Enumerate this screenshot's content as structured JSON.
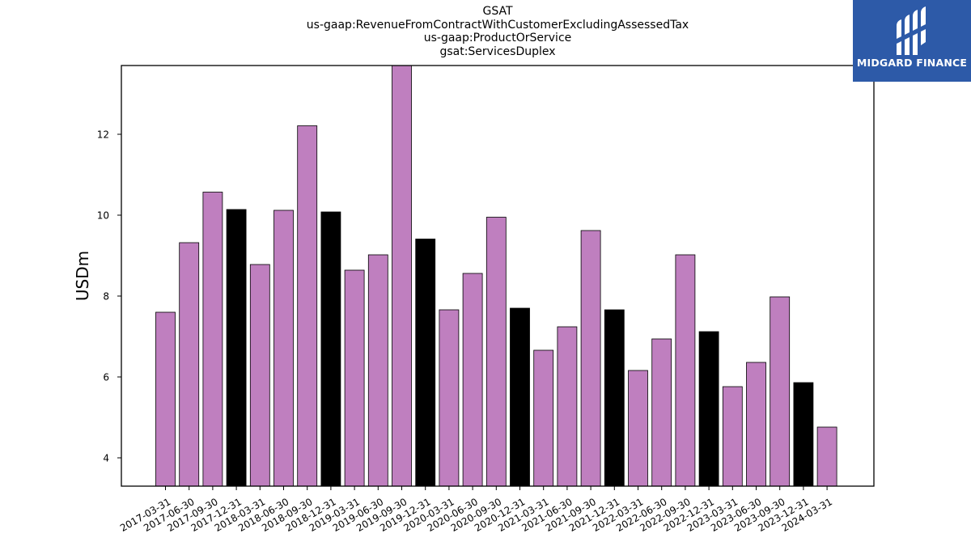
{
  "title_lines": [
    "GSAT",
    "us-gaap:RevenueFromContractWithCustomerExcludingAssessedTax",
    "us-gaap:ProductOrService",
    "gsat:ServicesDuplex"
  ],
  "logo": {
    "text": "MIDGARD FINANCE",
    "bg_color": "#2d5aa8"
  },
  "colors": {
    "quarter": "#bf7fbf",
    "year_end": "#000000"
  },
  "chart_data": {
    "type": "bar",
    "title": "GSAT\nus-gaap:RevenueFromContractWithCustomerExcludingAssessedTax\nus-gaap:ProductOrService\ngsat:ServicesDuplex",
    "xlabel": "",
    "ylabel": "USDm",
    "ylim": [
      3.3,
      13.7
    ],
    "yticks": [
      4,
      6,
      8,
      10,
      12
    ],
    "grid": false,
    "categories": [
      "2017-03-31",
      "2017-06-30",
      "2017-09-30",
      "2017-12-31",
      "2018-03-31",
      "2018-06-30",
      "2018-09-30",
      "2018-12-31",
      "2019-03-31",
      "2019-06-30",
      "2019-09-30",
      "2019-12-31",
      "2020-03-31",
      "2020-06-30",
      "2020-09-30",
      "2020-12-31",
      "2021-03-31",
      "2021-06-30",
      "2021-09-30",
      "2021-12-31",
      "2022-03-31",
      "2022-06-30",
      "2022-09-30",
      "2022-12-31",
      "2023-03-31",
      "2023-06-30",
      "2023-09-30",
      "2023-12-31",
      "2024-03-31"
    ],
    "values": [
      7.6,
      9.32,
      10.57,
      10.14,
      8.78,
      10.12,
      12.21,
      10.08,
      8.64,
      9.02,
      13.72,
      9.41,
      7.66,
      8.56,
      9.95,
      7.7,
      6.66,
      7.24,
      9.62,
      7.66,
      6.16,
      6.94,
      9.02,
      7.12,
      5.76,
      6.36,
      7.98,
      5.86,
      4.76
    ],
    "year_end": [
      false,
      false,
      false,
      true,
      false,
      false,
      false,
      true,
      false,
      false,
      false,
      true,
      false,
      false,
      false,
      true,
      false,
      false,
      false,
      true,
      false,
      false,
      false,
      true,
      false,
      false,
      false,
      true,
      false
    ]
  }
}
